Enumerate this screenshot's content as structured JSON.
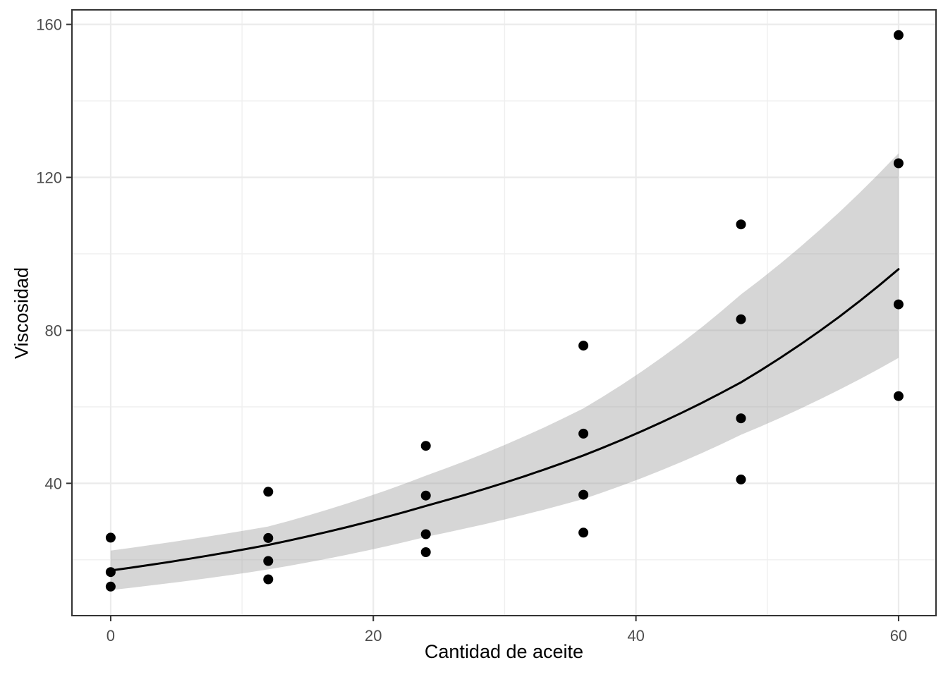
{
  "chart_data": {
    "type": "scatter",
    "title": "",
    "xlabel": "Cantidad de aceite",
    "ylabel": "Viscosidad",
    "legend_position": "none",
    "grid": true,
    "xlim": [
      -2.95,
      62.85
    ],
    "ylim": [
      5.4,
      163.8
    ],
    "x_major_ticks": [
      0,
      20,
      40,
      60
    ],
    "x_minor_ticks": [
      10,
      30,
      50
    ],
    "y_major_ticks": [
      40,
      80,
      120,
      160
    ],
    "y_minor_ticks": [
      20,
      60,
      100,
      140
    ],
    "points": [
      [
        0,
        25.8
      ],
      [
        0,
        16.8
      ],
      [
        0,
        13.0
      ],
      [
        12,
        37.8
      ],
      [
        12,
        25.7
      ],
      [
        12,
        19.7
      ],
      [
        12,
        14.9
      ],
      [
        24,
        49.8
      ],
      [
        24,
        36.8
      ],
      [
        24,
        26.7
      ],
      [
        24,
        22.0
      ],
      [
        36,
        76.0
      ],
      [
        36,
        53.0
      ],
      [
        36,
        37.0
      ],
      [
        36,
        27.1
      ],
      [
        48,
        107.7
      ],
      [
        48,
        82.9
      ],
      [
        48,
        57.0
      ],
      [
        48,
        41.0
      ],
      [
        60,
        157.2
      ],
      [
        60,
        123.7
      ],
      [
        60,
        86.8
      ],
      [
        60,
        62.8
      ]
    ],
    "smooth_fit": {
      "x": [
        0,
        12,
        24,
        36,
        48,
        60
      ],
      "y": [
        17.2,
        23.9,
        34.1,
        47.3,
        66.4,
        96.0
      ]
    },
    "ribbon": {
      "x": [
        0,
        12,
        24,
        36,
        48,
        60
      ],
      "upper": [
        22.4,
        28.7,
        42.0,
        59.6,
        89.4,
        126.3
      ],
      "lower": [
        12.1,
        17.5,
        26.0,
        35.9,
        52.7,
        72.8
      ]
    },
    "colors": {
      "point": "#000000",
      "line": "#000000",
      "ribbon": "#999999",
      "ribbon_opacity": "0.4",
      "grid_major": "#ebebeb",
      "grid_minor": "#efefef",
      "panel_border": "#333333",
      "tick_mark": "#333333",
      "tick_label": "#4d4d4d",
      "axis_title": "#000000",
      "panel_background": "#ffffff"
    }
  }
}
